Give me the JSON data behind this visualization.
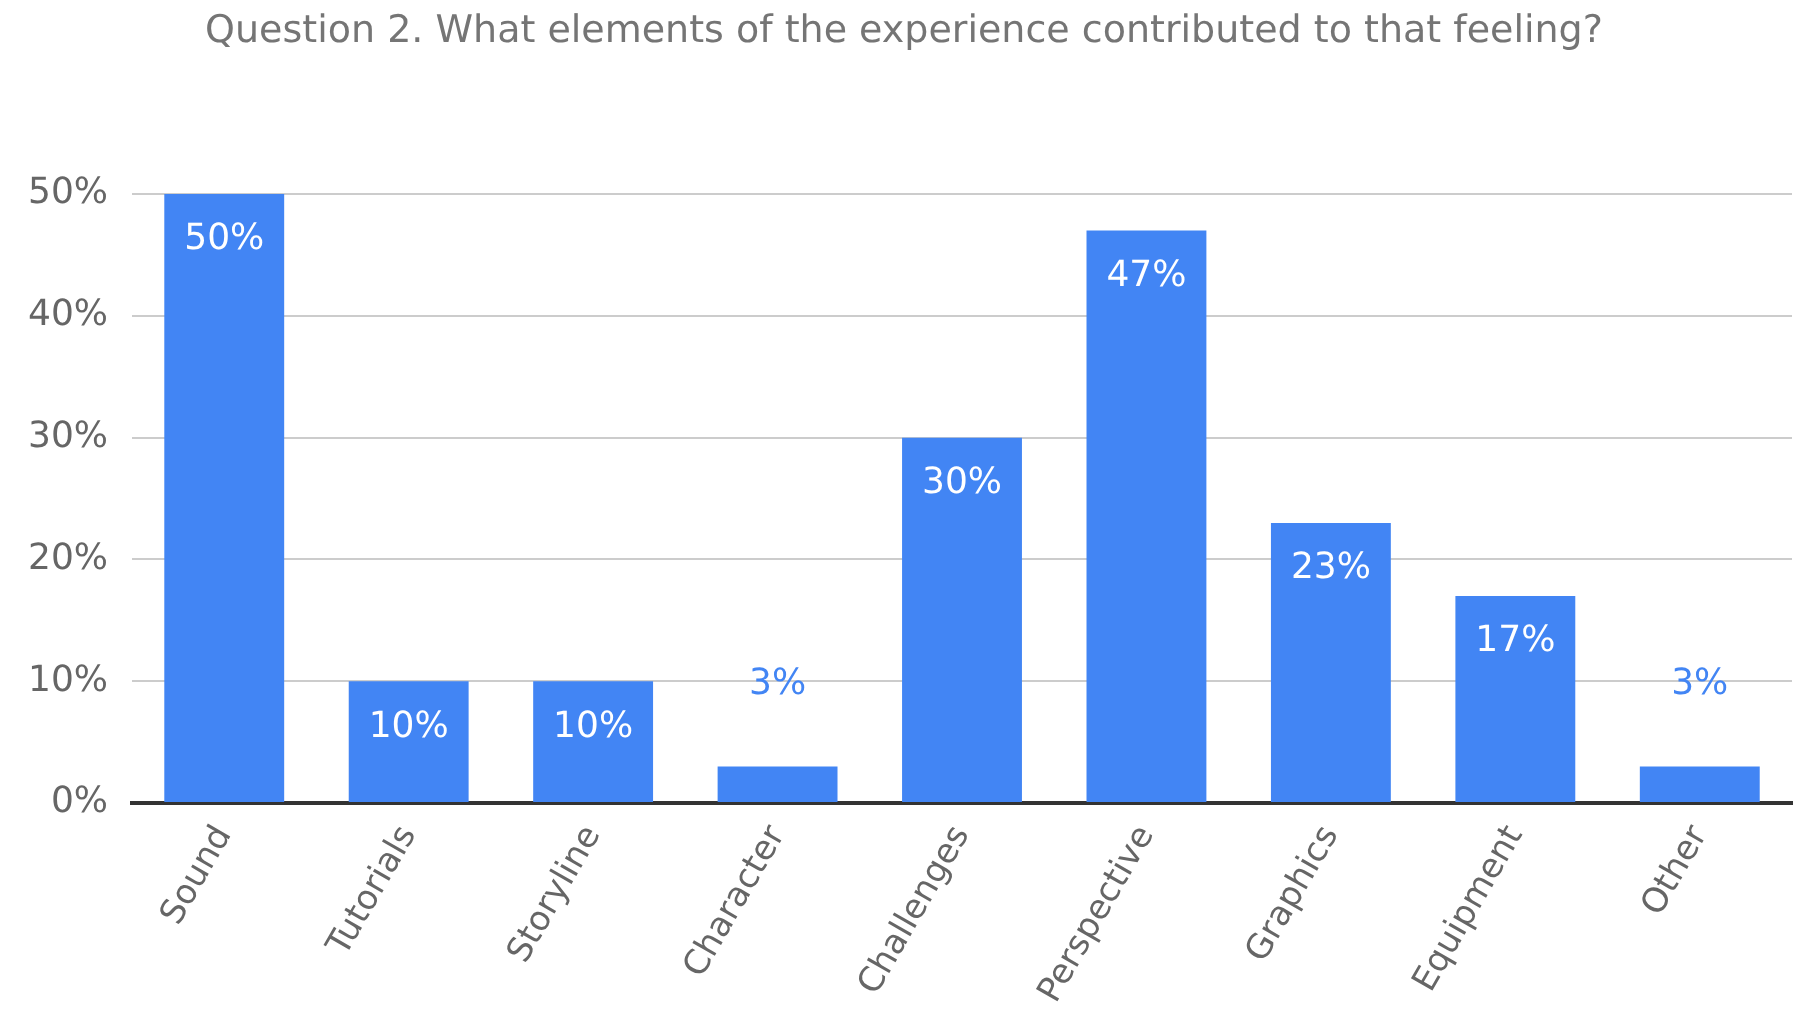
{
  "chart_data": {
    "type": "bar",
    "title": "Question 2. What elements of the experience contributed to that feeling?",
    "categories": [
      "Sound",
      "Tutorials",
      "Storyline",
      "Character",
      "Challenges",
      "Perspective",
      "Graphics",
      "Equipment",
      "Other"
    ],
    "values": [
      50,
      10,
      10,
      3,
      30,
      47,
      23,
      17,
      3
    ],
    "value_labels": [
      "50%",
      "10%",
      "10%",
      "3%",
      "30%",
      "47%",
      "23%",
      "17%",
      "3%"
    ],
    "color": "#4285f4",
    "ylim": [
      0,
      50
    ],
    "yticks": [
      {
        "value": 0,
        "label": "0%"
      },
      {
        "value": 10,
        "label": "10%"
      },
      {
        "value": 20,
        "label": "20%"
      },
      {
        "value": 30,
        "label": "30%"
      },
      {
        "value": 40,
        "label": "40%"
      },
      {
        "value": 50,
        "label": "50%"
      }
    ],
    "grid": "y",
    "legend": false
  }
}
